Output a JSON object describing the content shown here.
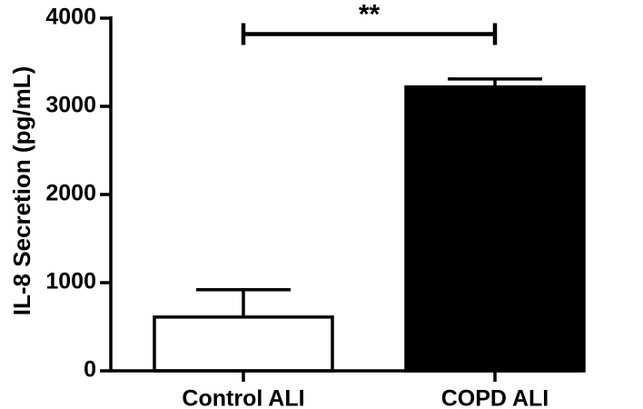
{
  "chart_data": {
    "type": "bar",
    "title": "",
    "xlabel": "",
    "ylabel": "IL-8 Secretion (pg/mL)",
    "ylim": [
      0,
      4000
    ],
    "yticks": [
      0,
      1000,
      2000,
      3000,
      4000
    ],
    "tick_labels": [
      "0",
      "1000",
      "2000",
      "3000",
      "4000"
    ],
    "categories": [
      "Control ALI",
      "COPD ALI"
    ],
    "values": [
      610,
      3220
    ],
    "error_upper": [
      920,
      3310
    ],
    "bar_colors": [
      "#ffffff",
      "#000000"
    ],
    "grid": false,
    "significance": {
      "label": "**",
      "from": "Control ALI",
      "to": "COPD ALI",
      "y": 3820
    }
  }
}
